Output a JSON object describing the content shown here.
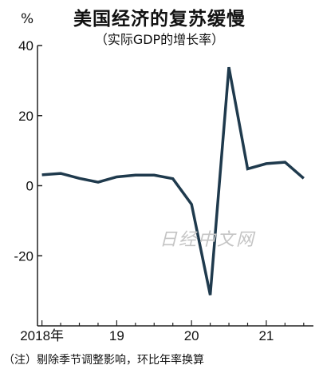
{
  "chart_data": {
    "type": "line",
    "title": "美国经济的复苏缓慢",
    "subtitle": "（实际GDP的增长率）",
    "ylabel": "%",
    "ylim": [
      -40,
      40
    ],
    "yticks": [
      40,
      20,
      0,
      -20
    ],
    "xticks": [
      {
        "label": "2018年",
        "x": 2018.0
      },
      {
        "label": "19",
        "x": 2019.0
      },
      {
        "label": "20",
        "x": 2020.0
      },
      {
        "label": "21",
        "x": 2021.0
      }
    ],
    "series": [
      {
        "color": "#1f3a4d",
        "x": [
          2018.0,
          2018.25,
          2018.5,
          2018.75,
          2019.0,
          2019.25,
          2019.5,
          2019.75,
          2020.0,
          2020.25,
          2020.5,
          2020.75,
          2021.0,
          2021.25,
          2021.5
        ],
        "y": [
          3.1,
          3.5,
          2.1,
          1.0,
          2.5,
          3.0,
          3.0,
          2.0,
          -5.3,
          -31.2,
          33.8,
          4.8,
          6.3,
          6.7,
          2.1
        ]
      }
    ],
    "grid": false
  },
  "footnote": "（注）剔除季节调整影响，环比年率换算",
  "watermark": "日经中文网"
}
